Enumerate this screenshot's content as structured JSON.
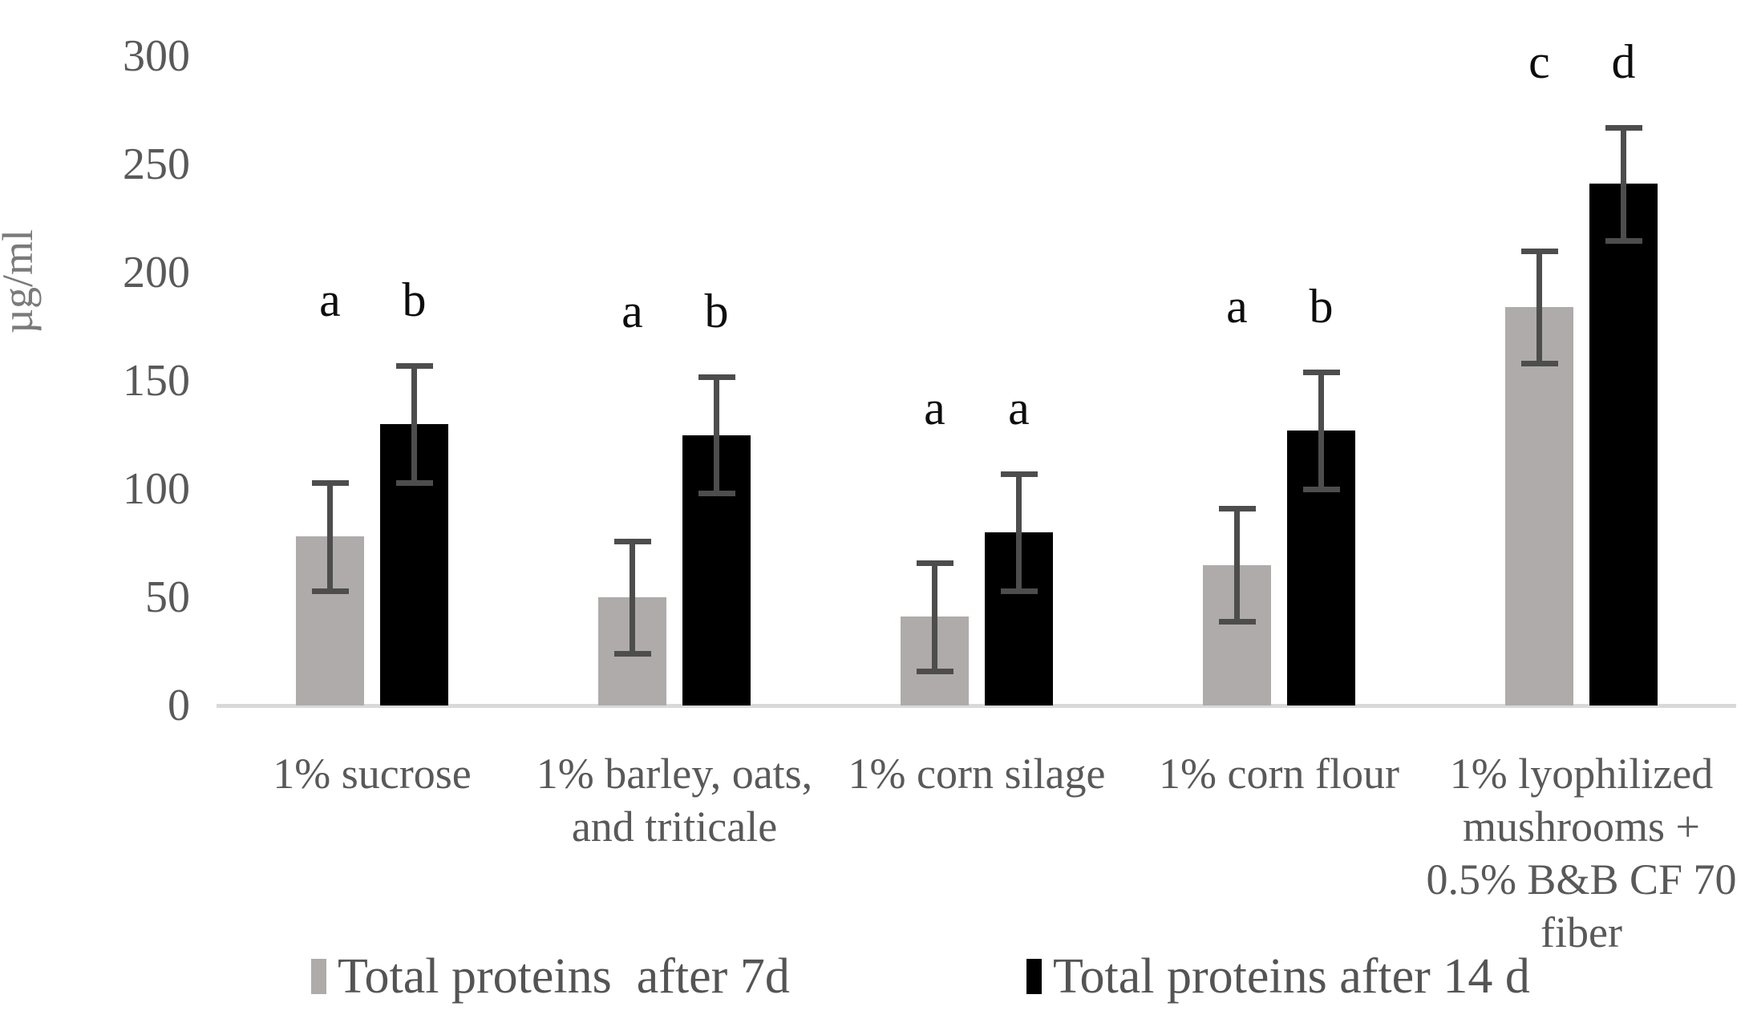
{
  "chart_data": {
    "type": "bar",
    "title": "",
    "ylabel": "µg/ml",
    "xlabel": "",
    "ylim": [
      0,
      300
    ],
    "yticks": [
      0,
      50,
      100,
      150,
      200,
      250,
      300
    ],
    "grid": false,
    "legend_position": "bottom",
    "categories": [
      "1% sucrose",
      "1% barley, oats, and triticale",
      "1% corn silage",
      "1% corn flour",
      "1% lyophilized mushrooms + 0.5% B&B CF 70 fiber"
    ],
    "category_lines": [
      [
        "1% sucrose"
      ],
      [
        "1% barley, oats,",
        "and triticale"
      ],
      [
        "1% corn silage"
      ],
      [
        "1% corn flour"
      ],
      [
        "1% lyophilized",
        "mushrooms +",
        "0.5% B&B CF 70",
        "fiber"
      ]
    ],
    "series": [
      {
        "name": "Total proteins  after 7d",
        "color": "#aeabaa",
        "values": [
          78,
          50,
          41,
          65,
          184
        ],
        "errors": [
          25,
          26,
          25,
          26,
          26
        ],
        "sig_letters": [
          "a",
          "a",
          "a",
          "a",
          "c"
        ]
      },
      {
        "name": "Total proteins after 14 d",
        "color": "#000000",
        "values": [
          130,
          125,
          80,
          127,
          241
        ],
        "errors": [
          27,
          27,
          27,
          27,
          26
        ],
        "sig_letters": [
          "b",
          "b",
          "a",
          "b",
          "d"
        ]
      }
    ]
  },
  "colors": {
    "gray_series": "#aeabaa",
    "black_series": "#000000",
    "error_bar": "#4d4d4d",
    "axis_line": "#d9d9d9",
    "tick_text": "#595959",
    "category_text": "#595959",
    "legend_text": "#545454",
    "ylabel_text": "#7a7a7a",
    "sig_letter_text": "#0d0d0d",
    "background": "#ffffff"
  }
}
